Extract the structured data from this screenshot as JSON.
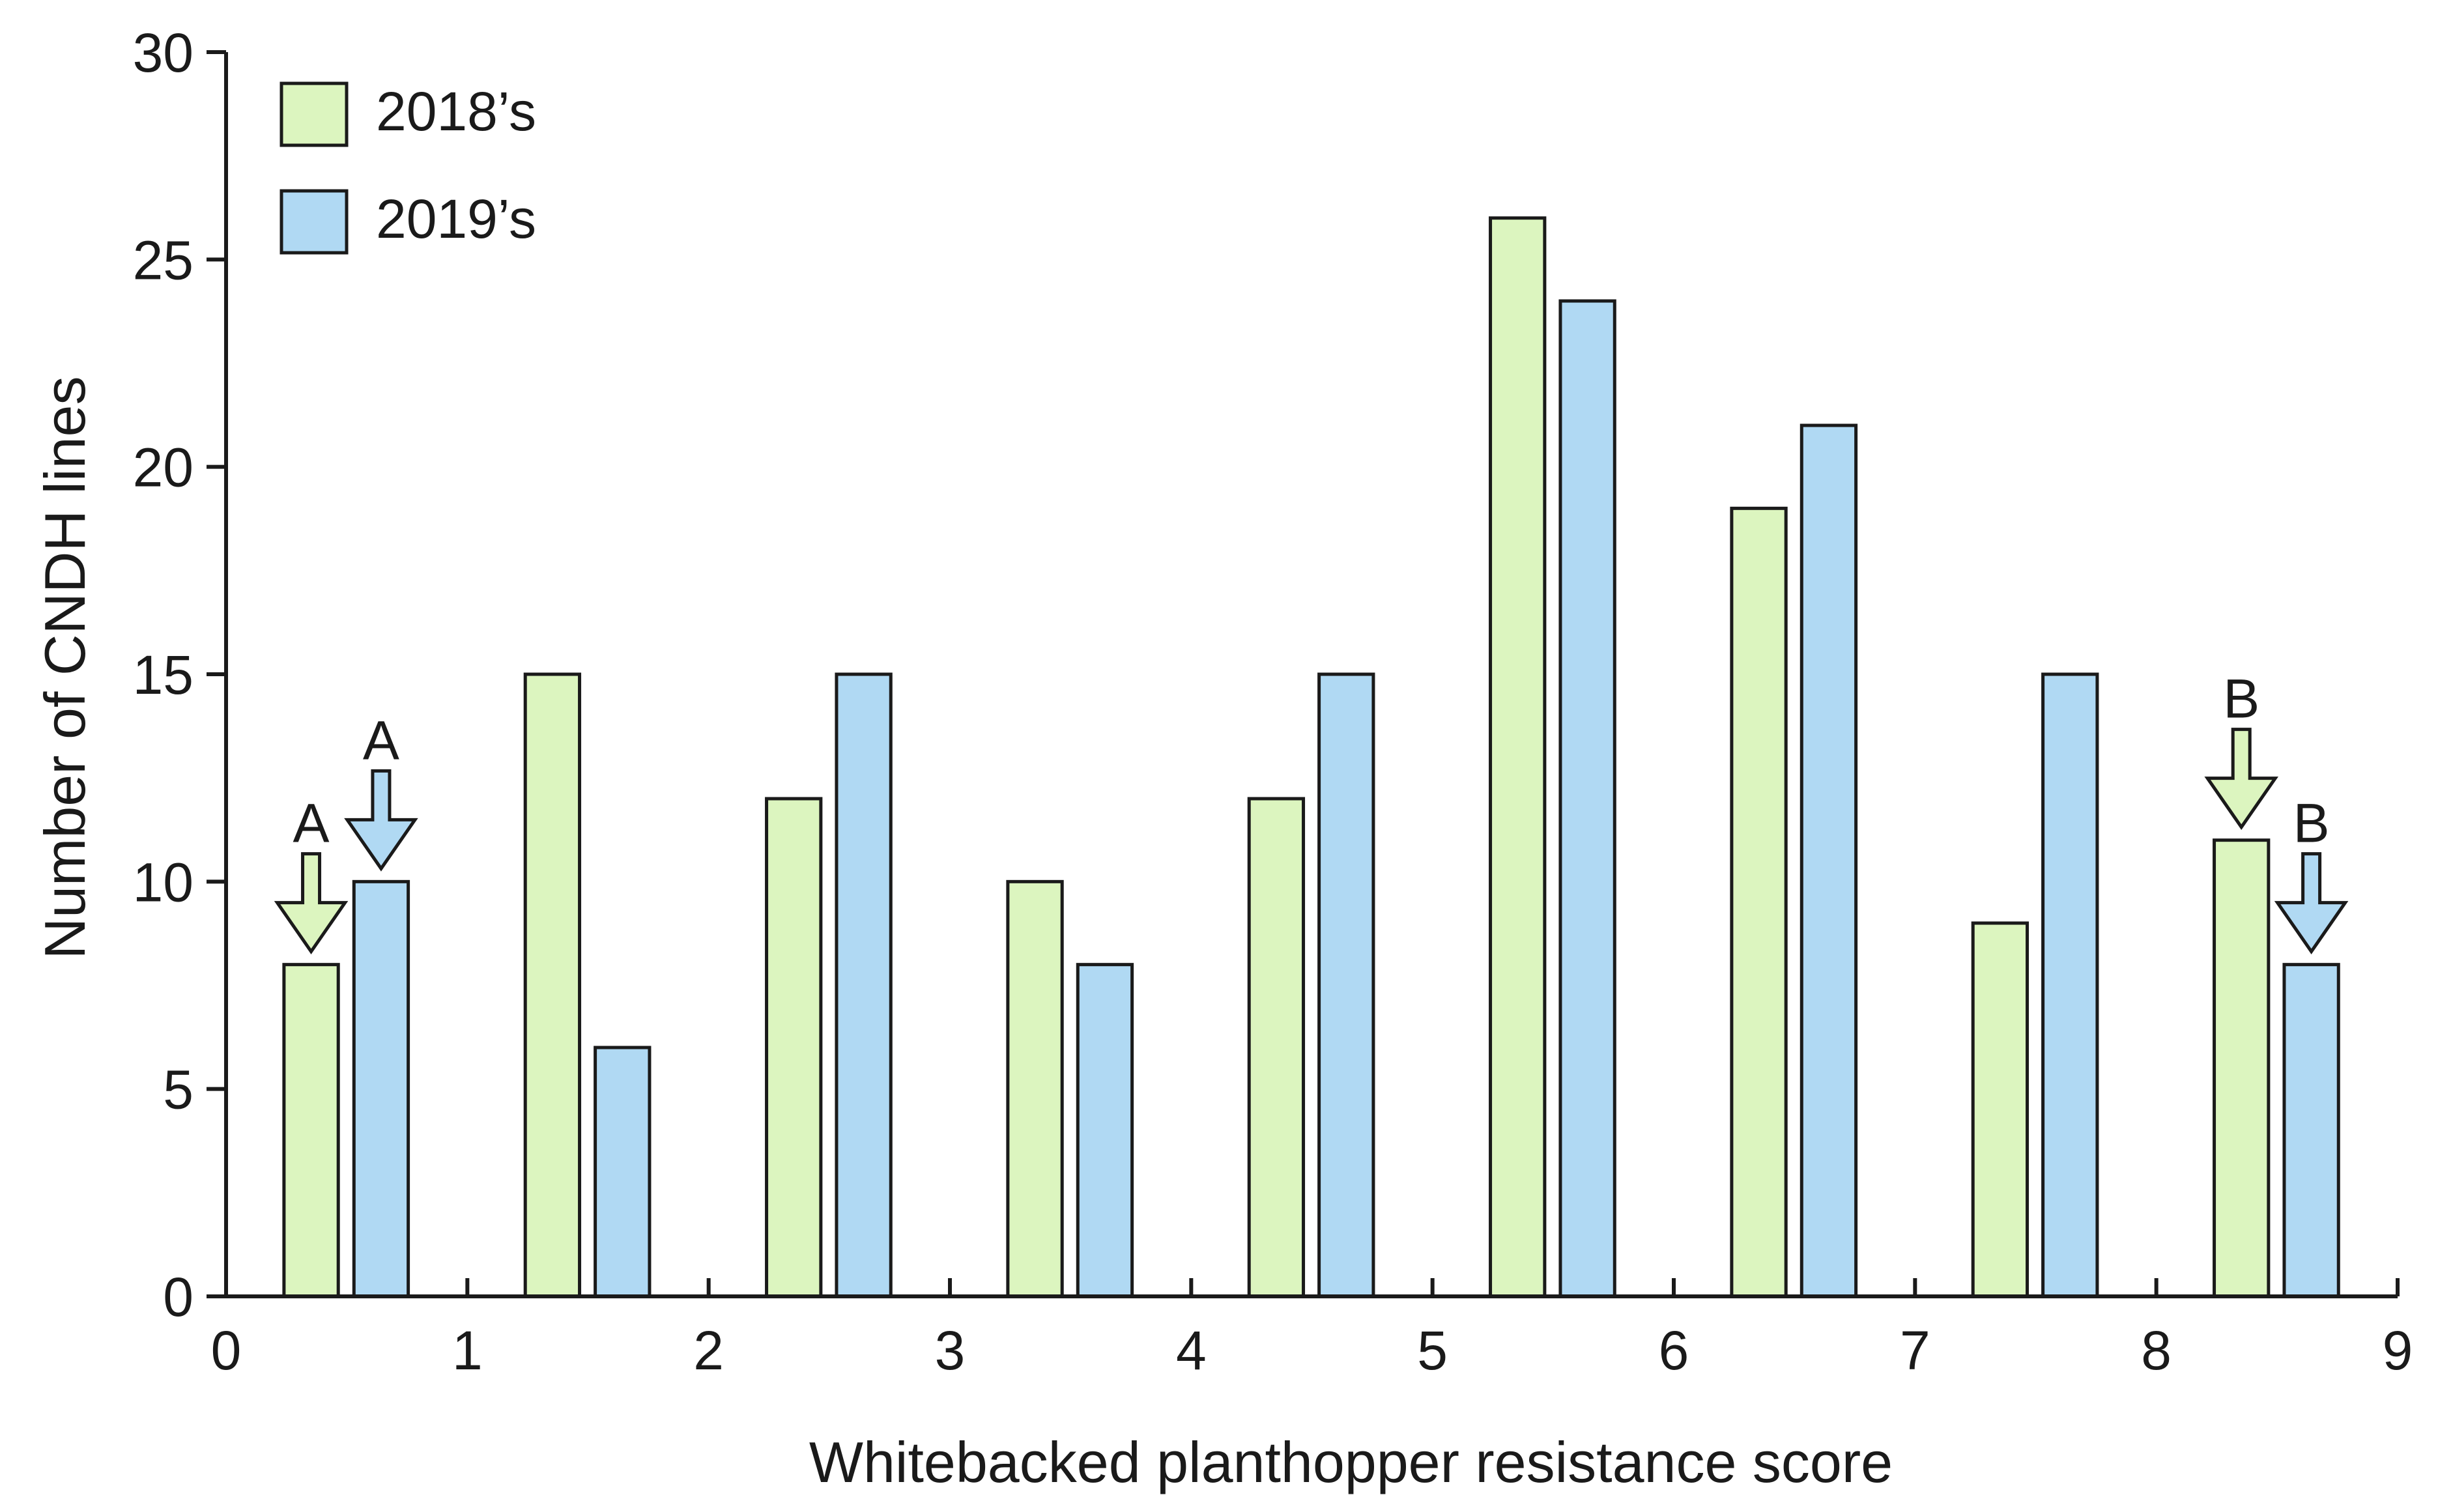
{
  "chart_data": {
    "type": "bar",
    "title": "",
    "xlabel": "Whitebacked planthopper resistance score",
    "ylabel": "Number of CNDH lines",
    "xlim": [
      0,
      9
    ],
    "ylim": [
      0,
      30
    ],
    "xticks": [
      "0",
      "1",
      "2",
      "3",
      "4",
      "5",
      "6",
      "7",
      "8",
      "9"
    ],
    "yticks": [
      "0",
      "5",
      "10",
      "15",
      "20",
      "25",
      "30"
    ],
    "bins": [
      "0-1",
      "1-2",
      "2-3",
      "3-4",
      "4-5",
      "5-6",
      "6-7",
      "7-8",
      "8-9"
    ],
    "grid": false,
    "legend_position": "top-left",
    "series": [
      {
        "name": "2018’s",
        "color": "#dcf5bf",
        "values": [
          8,
          15,
          12,
          10,
          12,
          26,
          19,
          9,
          11
        ]
      },
      {
        "name": "2019’s",
        "color": "#b0d9f3",
        "values": [
          10,
          6,
          15,
          8,
          15,
          24,
          21,
          15,
          8
        ]
      }
    ],
    "annotations": [
      {
        "label": "A",
        "series": 0,
        "bin": 0,
        "color": "#dcf5bf"
      },
      {
        "label": "A",
        "series": 1,
        "bin": 0,
        "color": "#b0d9f3"
      },
      {
        "label": "B",
        "series": 0,
        "bin": 8,
        "color": "#dcf5bf"
      },
      {
        "label": "B",
        "series": 1,
        "bin": 8,
        "color": "#b0d9f3"
      }
    ]
  }
}
